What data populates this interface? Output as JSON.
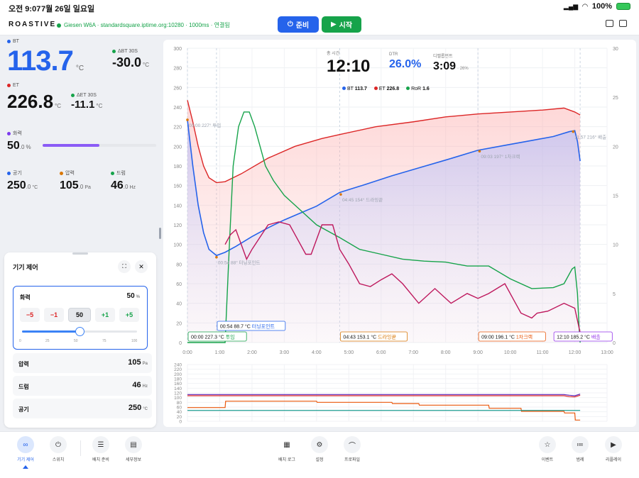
{
  "status": {
    "time": "오전 9:07",
    "date": "7월 26일 일요일",
    "battery": "100%"
  },
  "header": {
    "logo": "ROASTIVE",
    "connection": "Giesen W6A · standardsquare.iptime.org:10280 · 1000ms · 연결됨",
    "ready_label": "준비",
    "start_label": "시작"
  },
  "metrics": {
    "bt": {
      "label": "BT",
      "value": "113.7",
      "unit": "°C"
    },
    "dbt": {
      "label": "ΔBT 30S",
      "value": "-30.0",
      "unit": "°C"
    },
    "et": {
      "label": "ET",
      "value": "226.8",
      "unit": "°C"
    },
    "det": {
      "label": "ΔET 30S",
      "value": "-11.1",
      "unit": "°C"
    },
    "heat": {
      "label": "화력",
      "value": "50",
      "decimal": ".0",
      "unit": "%",
      "level": 0.5
    },
    "air": {
      "label": "공기",
      "value": "250",
      "decimal": ".0",
      "unit": "°C"
    },
    "pressure": {
      "label": "압력",
      "value": "105",
      "decimal": ".0",
      "unit": "Pa"
    },
    "drum": {
      "label": "드럼",
      "value": "46",
      "decimal": ".0",
      "unit": "Hz"
    }
  },
  "control": {
    "title": "기기 제어",
    "heat_label": "화력",
    "heat_value": "50",
    "heat_unit": "%",
    "steps": [
      "−5",
      "−1",
      "50",
      "+1",
      "+5"
    ],
    "slider_ticks": [
      "0",
      "25",
      "50",
      "75",
      "100"
    ],
    "slider_level": 0.5,
    "pressure_label": "압력",
    "pressure_value": "105",
    "pressure_unit": "Pa",
    "drum_label": "드럼",
    "drum_value": "46",
    "drum_unit": "Hz",
    "air_label": "공기",
    "air_value": "250",
    "air_unit": "°C"
  },
  "summary": {
    "total_label": "총 시간",
    "total_time": "12:10",
    "dtr_label": "DTR",
    "dtr_value": "26.0%",
    "dev_label": "디벨롭먼트",
    "dev_time": "3:09",
    "dev_pct": "· 26%"
  },
  "legend": [
    {
      "name": "BT",
      "value": "113.7",
      "color": "#2563eb"
    },
    {
      "name": "ET",
      "value": "226.8",
      "color": "#dc2626"
    },
    {
      "name": "RoR",
      "value": "1.6",
      "color": "#16a34a"
    }
  ],
  "events": [
    {
      "label": "00:00 227.3 °C",
      "name": "투입",
      "color": "#16a34a",
      "t": 0
    },
    {
      "label": "00:54 88.7 °C",
      "name": "터닝포인트",
      "color": "#2563eb",
      "t": 54
    },
    {
      "label": "04:43 153.1 °C",
      "name": "드라잉끝",
      "color": "#d97706",
      "t": 283
    },
    {
      "label": "09:00 196.1 °C",
      "name": "1차크랙",
      "color": "#ea580c",
      "t": 540
    },
    {
      "label": "12:10 185.2 °C",
      "name": "배출",
      "color": "#9333ea",
      "t": 730
    }
  ],
  "ghost_labels": [
    {
      "text": "00:00 227° 투입",
      "t": 0,
      "y": 222
    },
    {
      "text": "00:54 88° 터닝포인트",
      "t": 54,
      "y": 82
    },
    {
      "text": "04:45 154° 드라잉끝",
      "t": 285,
      "y": 146
    },
    {
      "text": "09:03 197° 1차크랙",
      "t": 543,
      "y": 190
    },
    {
      "text": "11:57 216° 배출",
      "t": 717,
      "y": 210
    }
  ],
  "chart_data": {
    "type": "line",
    "x_ticks": [
      "0:00",
      "1:00",
      "2:00",
      "3:00",
      "4:00",
      "5:00",
      "6:00",
      "7:00",
      "8:00",
      "9:00",
      "10:00",
      "11:00",
      "12:00",
      "13:00"
    ],
    "xlim_seconds": [
      0,
      780
    ],
    "y_left_ticks": [
      "0",
      "20",
      "40",
      "60",
      "80",
      "100",
      "120",
      "140",
      "160",
      "180",
      "200",
      "220",
      "240",
      "260",
      "280",
      "300"
    ],
    "ylim_left": [
      0,
      300
    ],
    "y_right_ticks": [
      "0",
      "5",
      "10",
      "15",
      "20",
      "25",
      "30"
    ],
    "ylim_right": [
      0,
      30
    ],
    "series": [
      {
        "name": "BT",
        "color": "#2563eb",
        "t": [
          0,
          10,
          20,
          30,
          40,
          54,
          70,
          90,
          120,
          150,
          180,
          210,
          240,
          283,
          330,
          380,
          430,
          480,
          540,
          590,
          640,
          680,
          710,
          720,
          725,
          730
        ],
        "v": [
          227,
          180,
          140,
          112,
          95,
          88.7,
          92,
          98,
          108,
          117,
          125,
          132,
          139,
          153,
          161,
          170,
          178,
          186,
          196,
          201,
          206,
          210,
          215,
          216,
          205,
          185
        ]
      },
      {
        "name": "ET",
        "color": "#dc2626",
        "t": [
          0,
          10,
          20,
          30,
          40,
          54,
          70,
          100,
          150,
          200,
          250,
          283,
          350,
          420,
          480,
          540,
          600,
          660,
          700,
          720,
          730
        ],
        "v": [
          247,
          225,
          200,
          180,
          168,
          163,
          164,
          172,
          188,
          200,
          208,
          212,
          220,
          225,
          230,
          233,
          235,
          237,
          239,
          235,
          232
        ]
      },
      {
        "name": "RoR",
        "color": "#16a34a",
        "t": [
          0,
          70,
          78,
          85,
          95,
          105,
          115,
          125,
          135,
          145,
          160,
          180,
          200,
          240,
          283,
          320,
          360,
          400,
          440,
          480,
          520,
          560,
          600,
          640,
          680,
          700,
          715,
          720,
          725,
          728,
          730
        ],
        "v": [
          0,
          0,
          10,
          18,
          22,
          23.5,
          23.5,
          22,
          20,
          18,
          16.5,
          15,
          14,
          12,
          10.7,
          9.5,
          9,
          8.5,
          8.3,
          8.2,
          7.8,
          7.8,
          6.5,
          5.5,
          5.6,
          6,
          7.5,
          7.7,
          5,
          1.5,
          0
        ]
      },
      {
        "name": "DeltaET",
        "color": "#be185d",
        "t": [
          70,
          80,
          90,
          100,
          110,
          120,
          150,
          170,
          190,
          200,
          220,
          230,
          240,
          250,
          270,
          283,
          300,
          320,
          340,
          360,
          380,
          400,
          430,
          460,
          490,
          520,
          540,
          560,
          590,
          610,
          620,
          640,
          650,
          670,
          700,
          720,
          730
        ],
        "v": [
          10,
          11,
          11.5,
          10,
          8.5,
          9.5,
          12,
          12.3,
          12,
          11,
          9,
          9,
          10.5,
          12,
          12,
          9.5,
          8,
          6,
          5.7,
          6.4,
          7,
          6,
          4,
          5.5,
          4,
          5,
          4.5,
          5,
          6,
          4,
          3,
          2.5,
          3,
          3.2,
          4,
          3.5,
          1
        ]
      }
    ],
    "sub_chart": {
      "y_ticks": [
        "0",
        "20",
        "40",
        "60",
        "80",
        "100",
        "120",
        "140",
        "160",
        "180",
        "200",
        "220",
        "240"
      ],
      "ylim": [
        0,
        240
      ],
      "series": [
        {
          "name": "purple",
          "color": "#5b21b6",
          "t": [
            0,
            700,
            710,
            720,
            730
          ],
          "v": [
            113,
            113,
            110,
            108,
            115
          ]
        },
        {
          "name": "red",
          "color": "#dc2626",
          "t": [
            0,
            700,
            710,
            720,
            730
          ],
          "v": [
            108,
            108,
            104,
            103,
            110
          ]
        },
        {
          "name": "orange",
          "color": "#ea580c",
          "t": [
            0,
            70,
            71,
            240,
            241,
            380,
            381,
            430,
            431,
            560,
            561,
            620,
            621,
            700,
            701,
            720,
            721,
            730
          ],
          "v": [
            58,
            58,
            85,
            85,
            80,
            80,
            75,
            75,
            68,
            68,
            55,
            55,
            42,
            42,
            35,
            35,
            5,
            5
          ]
        },
        {
          "name": "teal",
          "color": "#0d9488",
          "t": [
            0,
            730
          ],
          "v": [
            46,
            46
          ]
        }
      ]
    }
  },
  "nav": [
    {
      "label": "기기 제어",
      "icon": "∞"
    },
    {
      "label": "스위치",
      "icon": "⏻"
    },
    {
      "label": "배치 준비",
      "icon": "☰"
    },
    {
      "label": "세부정보",
      "icon": "▤"
    },
    {
      "label": "배치 로그",
      "icon": "▦"
    },
    {
      "label": "설정",
      "icon": "⚙"
    },
    {
      "label": "프로파일",
      "icon": "⌒"
    },
    {
      "label": "이벤트",
      "icon": "☆"
    },
    {
      "label": "범례",
      "icon": "≔"
    },
    {
      "label": "리플레이",
      "icon": "▶"
    }
  ]
}
